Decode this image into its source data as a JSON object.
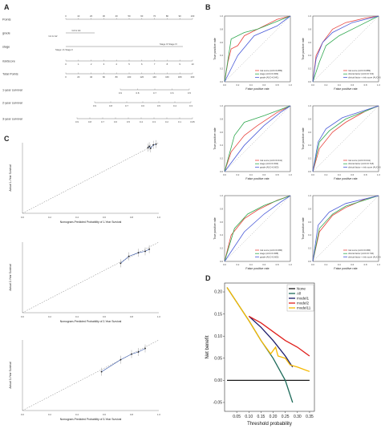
{
  "panels": {
    "a": "A",
    "b": "B",
    "c": "C",
    "d": "D"
  },
  "nomogram": {
    "rows": [
      {
        "label": "Points",
        "ticks": [
          "0",
          "10",
          "20",
          "30",
          "40",
          "50",
          "60",
          "70",
          "80",
          "90",
          "100"
        ]
      },
      {
        "label": "grade",
        "ticks": [
          "G3 & G4",
          "G1 & G2"
        ]
      },
      {
        "label": "stage",
        "ticks": [
          "Stage III Stage IV",
          "Stage I & Stage II"
        ]
      },
      {
        "label": "riskScore",
        "ticks": [
          "0",
          "1",
          "2",
          "3",
          "4",
          "5",
          "6",
          "7",
          "8",
          "9",
          "10"
        ]
      },
      {
        "label": "Total Points",
        "ticks": [
          "0",
          "20",
          "40",
          "60",
          "80",
          "100",
          "120",
          "140",
          "160",
          "180",
          "200"
        ]
      },
      {
        "label": "1-year survival",
        "ticks": [
          "0.9",
          "0.8",
          "0.7",
          "0.6",
          "0.5"
        ]
      },
      {
        "label": "2-year survival",
        "ticks": [
          "0.9",
          "0.8",
          "0.7",
          "0.6",
          "0.5",
          "0.4",
          "0.3"
        ]
      },
      {
        "label": "3-year survival",
        "ticks": [
          "0.9",
          "0.8",
          "0.7",
          "0.6",
          "0.5",
          "0.4",
          "0.3",
          "0.2",
          "0.1",
          "0.05"
        ]
      }
    ]
  },
  "roc": {
    "xlabel": "False positive rate",
    "ylabel": "True positive rate",
    "ticks": [
      "0.0",
      "0.2",
      "0.4",
      "0.6",
      "0.8",
      "1.0"
    ],
    "colors": {
      "red": "#e8433d",
      "green": "#2fa84f",
      "blue": "#4a5bd8",
      "purple": "#8a2be2"
    }
  },
  "chart_data": [
    {
      "type": "line",
      "panel": "B-1",
      "series": [
        {
          "name": "risk score (AUC=0.889)",
          "color": "#e8433d",
          "points": [
            [
              0,
              0
            ],
            [
              0.05,
              0.3
            ],
            [
              0.1,
              0.5
            ],
            [
              0.2,
              0.55
            ],
            [
              0.3,
              0.7
            ],
            [
              0.4,
              0.75
            ],
            [
              0.6,
              0.85
            ],
            [
              0.8,
              0.95
            ],
            [
              1,
              1
            ]
          ]
        },
        {
          "name": "stage (AUC=0.683)",
          "color": "#2fa84f",
          "points": [
            [
              0,
              0
            ],
            [
              0.1,
              0.65
            ],
            [
              0.3,
              0.75
            ],
            [
              0.5,
              0.8
            ],
            [
              1,
              1
            ]
          ]
        },
        {
          "name": "grade (AUC=0.641)",
          "color": "#4a5bd8",
          "points": [
            [
              0,
              0
            ],
            [
              0.2,
              0.4
            ],
            [
              0.45,
              0.7
            ],
            [
              0.8,
              0.85
            ],
            [
              1,
              1
            ]
          ]
        }
      ]
    },
    {
      "type": "line",
      "panel": "B-2",
      "series": [
        {
          "name": "risk score (AUC=0.889)",
          "color": "#e8433d",
          "points": [
            [
              0,
              0
            ],
            [
              0.05,
              0.4
            ],
            [
              0.15,
              0.6
            ],
            [
              0.3,
              0.8
            ],
            [
              0.5,
              0.9
            ],
            [
              0.8,
              0.97
            ],
            [
              1,
              1
            ]
          ]
        },
        {
          "name": "clinical factor (AUC=0.723)",
          "color": "#2fa84f",
          "points": [
            [
              0,
              0
            ],
            [
              0.1,
              0.3
            ],
            [
              0.2,
              0.55
            ],
            [
              0.4,
              0.7
            ],
            [
              0.7,
              0.85
            ],
            [
              1,
              1
            ]
          ]
        },
        {
          "name": "clinical factor + risk score (AUC=0.754)",
          "color": "#4a5bd8",
          "points": [
            [
              0,
              0
            ],
            [
              0.05,
              0.35
            ],
            [
              0.15,
              0.6
            ],
            [
              0.3,
              0.75
            ],
            [
              0.6,
              0.9
            ],
            [
              1,
              1
            ]
          ]
        }
      ]
    },
    {
      "type": "line",
      "panel": "B-3",
      "series": [
        {
          "name": "risk score (AUC=0.641)",
          "color": "#e8433d",
          "points": [
            [
              0,
              0
            ],
            [
              0.1,
              0.3
            ],
            [
              0.3,
              0.55
            ],
            [
              0.5,
              0.7
            ],
            [
              0.8,
              0.9
            ],
            [
              1,
              1
            ]
          ]
        },
        {
          "name": "stage (AUC=0.693)",
          "color": "#2fa84f",
          "points": [
            [
              0,
              0
            ],
            [
              0.15,
              0.55
            ],
            [
              0.3,
              0.75
            ],
            [
              0.6,
              0.85
            ],
            [
              1,
              1
            ]
          ]
        },
        {
          "name": "grade (AUC=0.603)",
          "color": "#4a5bd8",
          "points": [
            [
              0,
              0
            ],
            [
              0.3,
              0.4
            ],
            [
              0.6,
              0.7
            ],
            [
              0.85,
              0.9
            ],
            [
              1,
              1
            ]
          ]
        }
      ]
    },
    {
      "type": "line",
      "panel": "B-4",
      "series": [
        {
          "name": "risk score (AUC=0.641)",
          "color": "#e8433d",
          "points": [
            [
              0,
              0
            ],
            [
              0.1,
              0.35
            ],
            [
              0.3,
              0.6
            ],
            [
              0.5,
              0.75
            ],
            [
              0.8,
              0.92
            ],
            [
              1,
              1
            ]
          ]
        },
        {
          "name": "clinical factor (AUC=0.718)",
          "color": "#2fa84f",
          "points": [
            [
              0,
              0
            ],
            [
              0.1,
              0.45
            ],
            [
              0.25,
              0.62
            ],
            [
              0.5,
              0.8
            ],
            [
              1,
              1
            ]
          ]
        },
        {
          "name": "clinical factor + risk score (AUC=0.736)",
          "color": "#4a5bd8",
          "points": [
            [
              0,
              0
            ],
            [
              0.08,
              0.45
            ],
            [
              0.2,
              0.65
            ],
            [
              0.45,
              0.82
            ],
            [
              1,
              1
            ]
          ]
        }
      ]
    },
    {
      "type": "line",
      "panel": "B-5",
      "series": [
        {
          "name": "risk score (AUC=0.686)",
          "color": "#e8433d",
          "points": [
            [
              0,
              0
            ],
            [
              0.1,
              0.4
            ],
            [
              0.3,
              0.65
            ],
            [
              0.5,
              0.78
            ],
            [
              0.8,
              0.93
            ],
            [
              1,
              1
            ]
          ]
        },
        {
          "name": "stage (AUC=0.688)",
          "color": "#2fa84f",
          "points": [
            [
              0,
              0
            ],
            [
              0.15,
              0.5
            ],
            [
              0.35,
              0.72
            ],
            [
              0.6,
              0.85
            ],
            [
              1,
              1
            ]
          ]
        },
        {
          "name": "grade (AUC=0.605)",
          "color": "#4a5bd8",
          "points": [
            [
              0,
              0
            ],
            [
              0.3,
              0.45
            ],
            [
              0.6,
              0.72
            ],
            [
              0.85,
              0.9
            ],
            [
              1,
              1
            ]
          ]
        }
      ]
    },
    {
      "type": "line",
      "panel": "B-6",
      "series": [
        {
          "name": "risk score (AUC=0.686)",
          "color": "#e8433d",
          "points": [
            [
              0,
              0
            ],
            [
              0.1,
              0.45
            ],
            [
              0.3,
              0.7
            ],
            [
              0.5,
              0.82
            ],
            [
              0.8,
              0.95
            ],
            [
              1,
              1
            ]
          ]
        },
        {
          "name": "clinical factor (AUC=0.740)",
          "color": "#2fa84f",
          "points": [
            [
              0,
              0
            ],
            [
              0.1,
              0.5
            ],
            [
              0.3,
              0.72
            ],
            [
              0.5,
              0.84
            ],
            [
              1,
              1
            ]
          ]
        },
        {
          "name": "clinical factor + risk score (AUC=0.771)",
          "color": "#4a5bd8",
          "points": [
            [
              0,
              0
            ],
            [
              0.08,
              0.55
            ],
            [
              0.25,
              0.75
            ],
            [
              0.5,
              0.88
            ],
            [
              1,
              1
            ]
          ]
        }
      ]
    },
    {
      "type": "line",
      "panel": "D",
      "xlabel": "Threshold probability",
      "ylabel": "Net benefit",
      "xlim": [
        0,
        0.37
      ],
      "ylim": [
        -0.07,
        0.22
      ],
      "xticks": [
        "0.05",
        "0.10",
        "0.15",
        "0.20",
        "0.25",
        "0.30",
        "0.35"
      ],
      "yticks": [
        "-0.05",
        "0.00",
        "0.05",
        "0.10",
        "0.15",
        "0.20"
      ],
      "series": [
        {
          "name": "None",
          "color": "#1a1a1a",
          "points": [
            [
              0.01,
              0.0
            ],
            [
              0.35,
              0.0
            ]
          ]
        },
        {
          "name": "All",
          "color": "#1e6b5a",
          "points": [
            [
              0.01,
              0.21
            ],
            [
              0.1,
              0.135
            ],
            [
              0.15,
              0.09
            ],
            [
              0.2,
              0.05
            ],
            [
              0.25,
              0.0
            ],
            [
              0.28,
              -0.05
            ]
          ]
        },
        {
          "name": "model1",
          "color": "#1c1c6b",
          "points": [
            [
              0.1,
              0.145
            ],
            [
              0.15,
              0.12
            ],
            [
              0.2,
              0.09
            ],
            [
              0.25,
              0.055
            ],
            [
              0.28,
              0.03
            ]
          ]
        },
        {
          "name": "model2",
          "color": "#e0201c",
          "points": [
            [
              0.1,
              0.145
            ],
            [
              0.15,
              0.13
            ],
            [
              0.2,
              0.11
            ],
            [
              0.25,
              0.09
            ],
            [
              0.3,
              0.075
            ],
            [
              0.35,
              0.055
            ]
          ]
        },
        {
          "name": "model11",
          "color": "#f5b800",
          "points": [
            [
              0.01,
              0.21
            ],
            [
              0.1,
              0.135
            ],
            [
              0.15,
              0.09
            ],
            [
              0.19,
              0.06
            ],
            [
              0.21,
              0.075
            ],
            [
              0.22,
              0.055
            ],
            [
              0.25,
              0.05
            ],
            [
              0.27,
              0.035
            ],
            [
              0.3,
              0.03
            ],
            [
              0.35,
              0.02
            ]
          ]
        }
      ]
    }
  ],
  "calibration": {
    "plots": [
      {
        "ylabel": "Actual 1-Year Survival",
        "xlabel": "Nomogram-Predicted Probability of 1-Year Survival"
      },
      {
        "ylabel": "Actual 2-Year Survival",
        "xlabel": "Nomogram-Predicted Probability of 2-Year Survival"
      },
      {
        "ylabel": "Actual 3-Year Survival",
        "xlabel": "Nomogram-Predicted Probability of 3-Year Survival"
      }
    ],
    "ticks": [
      "0.0",
      "0.2",
      "0.4",
      "0.6",
      "0.8",
      "1.0"
    ]
  }
}
